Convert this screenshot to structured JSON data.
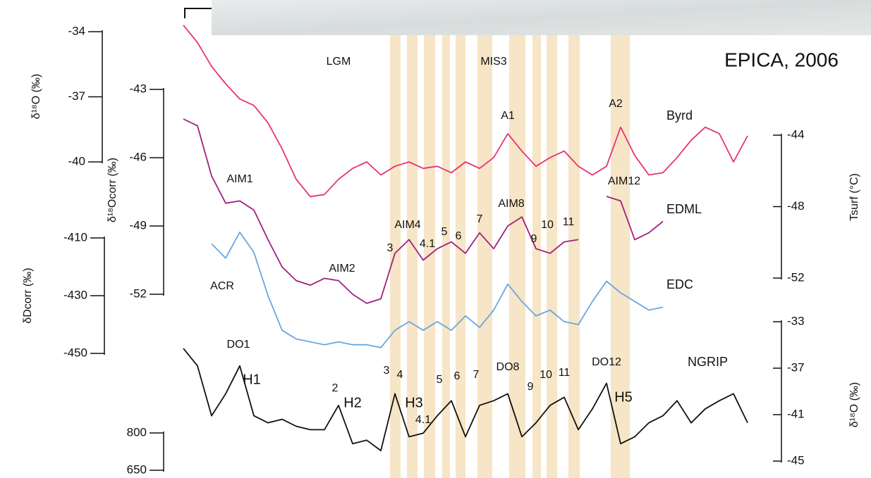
{
  "caption": "EPICA, 2006",
  "annotations": [
    "LGM",
    "MIS3",
    "A1",
    "A2",
    "AIM1",
    "AIM2",
    "AIM4",
    "3",
    "4.1",
    "5",
    "6",
    "7",
    "AIM8",
    "9",
    "10",
    "11",
    "AIM12",
    "ACR",
    "DO1",
    "H1",
    "2",
    "H2",
    "3",
    "4",
    "H3",
    "4.1",
    "5",
    "6",
    "7",
    "DO8",
    "9",
    "10",
    "11",
    "DO12",
    "H5"
  ],
  "chart_data": [
    {
      "type": "line",
      "ylabel": "δ¹⁸O (‰)",
      "label_color": "#e8317a",
      "ylim": [
        -40,
        -34
      ],
      "yticks": [
        -34,
        -37,
        -40
      ],
      "series": [
        {
          "name": "Byrd",
          "color": "#e8317a",
          "values": [
            -33.7,
            -34.5,
            -35.6,
            -36.4,
            -37.1,
            -37.4,
            -38.2,
            -39.4,
            -40.8,
            -41.6,
            -41.5,
            -40.8,
            -40.3,
            -40.0,
            -40.6,
            -40.2,
            -40.0,
            -40.3,
            -40.2,
            -40.5,
            -40.0,
            -40.3,
            -39.8,
            -38.7,
            -39.5,
            -40.2,
            -39.8,
            -39.5,
            -40.2,
            -40.6,
            -40.2,
            -38.4,
            -39.7,
            -40.6,
            -40.5,
            -39.8,
            -39.0,
            -38.4,
            -38.7,
            -40.0,
            -38.8
          ]
        }
      ]
    },
    {
      "type": "line",
      "ylabel": "δ¹⁸Ocorr (‰)",
      "label_color": "#c2307f",
      "ylim": [
        -52,
        -43
      ],
      "yticks": [
        -43,
        -46,
        -49,
        -52
      ],
      "series": [
        {
          "name": "EDML",
          "color": "#a0207e",
          "values": [
            -44.3,
            -44.6,
            -46.8,
            -48.0,
            -47.9,
            -48.3,
            -49.6,
            -50.8,
            -51.4,
            -51.6,
            -51.3,
            -51.4,
            -52.0,
            -52.4,
            -52.2,
            -50.2,
            -49.6,
            -50.5,
            -50.0,
            -49.7,
            -50.2,
            -49.3,
            -50.0,
            -49.0,
            -48.6,
            -50.0,
            -50.2,
            -49.7,
            -49.6,
            null,
            -47.7,
            -47.9,
            -49.6,
            -49.3,
            -48.8,
            null,
            null,
            null,
            null,
            null,
            null
          ]
        }
      ]
    },
    {
      "type": "line",
      "ylabel": "δDcorr (‰)",
      "label_color": "#5b9bd5",
      "ylim": [
        -450,
        -410
      ],
      "yticks": [
        -410,
        -430,
        -450
      ],
      "y2label": "Tsurf (°C)",
      "y2lim": [
        -52,
        -44
      ],
      "y2ticks": [
        -44,
        -48,
        -52
      ],
      "series": [
        {
          "name": "EDC",
          "color": "#6aa6e0",
          "values": [
            null,
            null,
            -412,
            -417,
            -408,
            -415,
            -430,
            -442,
            -445,
            -446,
            -447,
            -446,
            -447,
            -447,
            -448,
            -442,
            -439,
            -442,
            -439,
            -442,
            -437,
            -441,
            -435,
            -426,
            -432,
            -437,
            -435,
            -439,
            -440,
            -432,
            -425,
            -429,
            -432,
            -435,
            -434,
            null,
            null,
            null,
            null,
            null,
            null
          ]
        }
      ]
    },
    {
      "type": "line",
      "ylabel": "δ¹⁸O (‰)",
      "label_color": "#111111",
      "ylim": [
        -45,
        -33
      ],
      "yticks": [
        -33,
        -37,
        -41,
        -45
      ],
      "series": [
        {
          "name": "NGRIP",
          "color": "#111111",
          "values": [
            -35.3,
            -36.8,
            -41.1,
            -39.2,
            -36.8,
            -41.1,
            -41.7,
            -41.4,
            -42.0,
            -42.3,
            -42.3,
            -40.2,
            -43.5,
            -43.2,
            -44.1,
            -39.2,
            -42.9,
            -42.6,
            -41.1,
            -39.8,
            -42.9,
            -40.2,
            -39.8,
            -39.2,
            -42.9,
            -41.7,
            -40.2,
            -39.5,
            -42.3,
            -40.5,
            -38.3,
            -43.5,
            -42.9,
            -41.7,
            -41.1,
            -39.8,
            -41.7,
            -40.5,
            -39.8,
            -39.2,
            -41.7
          ]
        }
      ]
    },
    {
      "type": "line",
      "ylim": [
        650,
        800
      ],
      "yticks": [
        650,
        800
      ]
    }
  ]
}
